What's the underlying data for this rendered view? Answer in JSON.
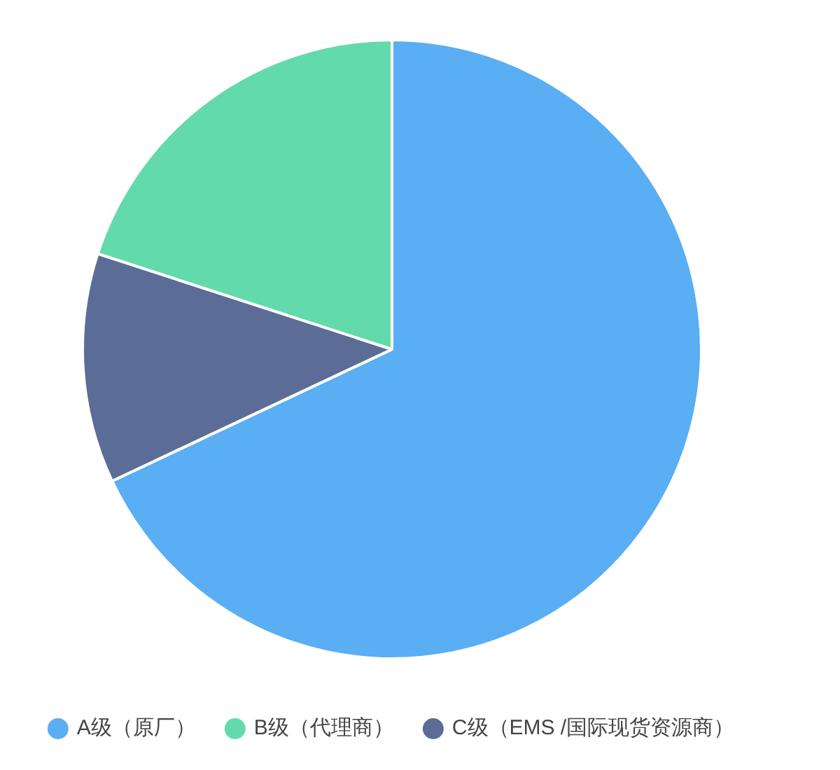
{
  "chart_data": {
    "type": "pie",
    "categories": [
      "A级（原厂）",
      "C级（EMS /国际现货资源商）",
      "B级（代理商）"
    ],
    "values": [
      68,
      12,
      20
    ],
    "colors": [
      "#5aaef3",
      "#5b6d96",
      "#63daab"
    ],
    "legend": "bottom"
  }
}
